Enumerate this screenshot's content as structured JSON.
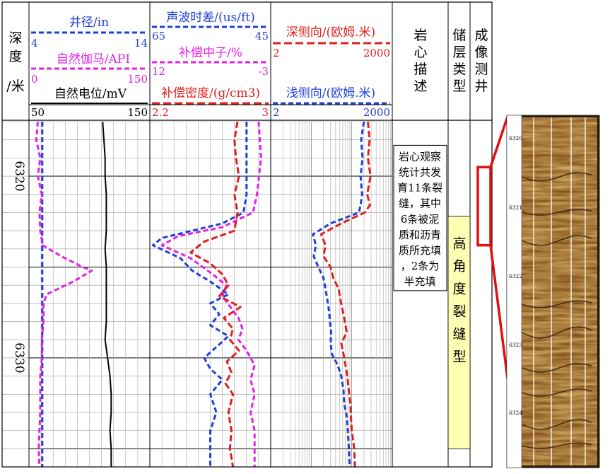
{
  "chart_data": {
    "type": "line",
    "title": "",
    "columns": {
      "depth": {
        "label_chars": [
          "深",
          "度",
          "/米"
        ]
      },
      "track1": {
        "caliper": {
          "label": "井径/in",
          "min": "4",
          "max": "14",
          "color": "#1f3fd6"
        },
        "gamma": {
          "label": "自然伽马/API",
          "min": "0",
          "max": "150",
          "color": "#e61ee6"
        },
        "sp": {
          "label": "自然电位/mV",
          "min": "50",
          "max": "150",
          "color": "#000000"
        }
      },
      "track2": {
        "sonic": {
          "label": "声波时差/(us/ft)",
          "min": "65",
          "max": "45",
          "color": "#1f3fd6"
        },
        "neutron": {
          "label": "补偿中子/%",
          "min": "12",
          "max": "-3",
          "color": "#e61ee6"
        },
        "density": {
          "label": "补偿密度/(g/cm3)",
          "min": "2.2",
          "max": "3",
          "color": "#e02020"
        }
      },
      "track3": {
        "deep_lat": {
          "label": "深侧向/(欧姆.米)",
          "min": "2",
          "max": "2000",
          "color": "#e02020"
        },
        "shallow_lat": {
          "label": "浅侧向/(欧姆.米)",
          "min": "2",
          "max": "2000",
          "color": "#1f3fd6"
        }
      },
      "core": {
        "header_chars": [
          "岩",
          "心",
          "描",
          "述"
        ]
      },
      "reservoir": {
        "header_chars": [
          "储",
          "层",
          "类",
          "型"
        ]
      },
      "imaging": {
        "header_chars": [
          "成",
          "像",
          "测",
          "井"
        ]
      }
    },
    "depth_range": [
      6317,
      6336
    ],
    "depth_labels": [
      "6320",
      "6330"
    ],
    "core_description_lines": [
      "岩心观察",
      "统计共发",
      "育11条裂",
      "缝，其中",
      "6条被泥",
      "质和沥青",
      "质所充填",
      "，2条为",
      "半充填"
    ],
    "reservoir_type_chars": [
      "高",
      "角",
      "度",
      "裂",
      "缝",
      "型"
    ],
    "reservoir_interval": [
      6322.2,
      6335.0
    ],
    "core_interval": [
      6318.3,
      6326.3
    ],
    "image_highlight_interval": [
      6319.5,
      6323.8
    ],
    "image_depth_labels": [
      "6320",
      "6321",
      "6322",
      "6323",
      "6324"
    ],
    "series": [
      {
        "name": "井径/in",
        "x_scale": [
          4,
          14
        ],
        "depth": [
          6317.0,
          6336.0
        ],
        "values": [
          5.1,
          5.1
        ]
      },
      {
        "name": "自然伽马/API",
        "x_scale": [
          0,
          150
        ],
        "depth": [
          6317.0,
          6318.0,
          6319.0,
          6320.0,
          6321.0,
          6322.0,
          6323.0,
          6323.8,
          6324.4,
          6324.9,
          6325.2,
          6325.8,
          6326.5,
          6327.0,
          6328.0,
          6329.0,
          6330.0,
          6331.0,
          6332.0,
          6333.0,
          6334.0,
          6335.0,
          6336.0
        ],
        "values": [
          11,
          9,
          14,
          11,
          16,
          13,
          14,
          17,
          40,
          62,
          78,
          55,
          22,
          18,
          18,
          16,
          16,
          14,
          14,
          14,
          13,
          12,
          13
        ]
      },
      {
        "name": "自然电位/mV",
        "x_scale": [
          50,
          150
        ],
        "depth": [
          6317.0,
          6318.0,
          6319.0,
          6320.0,
          6321.0,
          6322.0,
          6323.0,
          6324.0,
          6325.0,
          6326.0,
          6327.0,
          6328.0,
          6329.0,
          6330.0,
          6331.0,
          6332.0,
          6333.0,
          6334.0,
          6335.0,
          6336.0
        ],
        "values": [
          111,
          112,
          113,
          113,
          114,
          114,
          114,
          113,
          114,
          114,
          114,
          114,
          113,
          115,
          117,
          118,
          118,
          117,
          118,
          118
        ]
      },
      {
        "name": "声波时差/(us/ft)",
        "x_scale": [
          65,
          45
        ],
        "depth": [
          6317.0,
          6319.0,
          6321.0,
          6322.0,
          6322.6,
          6323.0,
          6323.4,
          6323.8,
          6324.5,
          6325.2,
          6325.8,
          6326.5,
          6327.0,
          6327.6,
          6328.2,
          6328.8,
          6329.4,
          6330.0,
          6330.6,
          6331.2,
          6332.0,
          6333.0,
          6334.0,
          6335.0,
          6336.0
        ],
        "values": [
          49,
          49,
          49,
          49.5,
          53,
          58,
          63,
          64.5,
          60,
          58,
          55,
          52,
          55,
          53.5,
          55,
          52,
          54,
          56,
          55,
          53,
          55,
          54,
          55,
          55,
          55
        ]
      },
      {
        "name": "补偿中子/%",
        "x_scale": [
          12,
          -3
        ],
        "depth": [
          6317.0,
          6319.0,
          6321.0,
          6322.0,
          6322.8,
          6323.3,
          6323.8,
          6324.5,
          6325.3,
          6326.0,
          6326.6,
          6327.2,
          6327.8,
          6328.4,
          6329.0,
          6329.6,
          6330.4,
          6331.2,
          6332.0,
          6333.0,
          6334.0,
          6335.0,
          6336.0
        ],
        "values": [
          -1.5,
          -1.8,
          -1.3,
          -0.8,
          3,
          8.5,
          10.5,
          7,
          4.5,
          2.5,
          3,
          2,
          1,
          0.5,
          1,
          0,
          -1,
          -0.5,
          -1,
          -0.5,
          -1,
          -1,
          -1
        ]
      },
      {
        "name": "补偿密度/(g/cm3)",
        "x_scale": [
          2.2,
          3.0
        ],
        "depth": [
          6317.0,
          6318.0,
          6319.0,
          6320.0,
          6321.0,
          6322.0,
          6323.0,
          6323.6,
          6324.2,
          6324.8,
          6325.4,
          6326.0,
          6326.6,
          6327.2,
          6327.8,
          6328.4,
          6329.0,
          6329.6,
          6330.2,
          6330.8,
          6331.4,
          6332.0,
          6333.0,
          6334.0,
          6335.0,
          6336.0
        ],
        "values": [
          2.78,
          2.76,
          2.77,
          2.79,
          2.76,
          2.78,
          2.76,
          2.56,
          2.47,
          2.6,
          2.68,
          2.72,
          2.66,
          2.8,
          2.69,
          2.75,
          2.73,
          2.79,
          2.71,
          2.74,
          2.7,
          2.75,
          2.72,
          2.74,
          2.73,
          2.75
        ]
      },
      {
        "name": "深侧向/(欧姆.米)",
        "x_scale": [
          2,
          2000
        ],
        "log": true,
        "depth": [
          6317.0,
          6318.0,
          6319.0,
          6320.0,
          6321.0,
          6321.6,
          6322.0,
          6322.6,
          6323.2,
          6323.8,
          6324.4,
          6325.0,
          6325.6,
          6326.2,
          6326.8,
          6327.4,
          6328.0,
          6328.6,
          6329.2,
          6329.8,
          6330.4,
          6331.0,
          6331.8,
          6332.5,
          6333.2,
          6334.0,
          6335.0,
          6336.0
        ],
        "values": [
          500,
          550,
          500,
          580,
          480,
          560,
          420,
          110,
          35,
          45,
          40,
          60,
          70,
          95,
          105,
          120,
          135,
          150,
          110,
          125,
          140,
          155,
          170,
          185,
          190,
          200,
          230,
          240
        ]
      },
      {
        "name": "浅侧向/(欧姆.米)",
        "x_scale": [
          2,
          2000
        ],
        "log": true,
        "depth": [
          6317.0,
          6318.0,
          6319.0,
          6320.0,
          6321.0,
          6321.6,
          6322.0,
          6322.6,
          6323.2,
          6323.8,
          6324.4,
          6325.0,
          6325.6,
          6326.2,
          6326.8,
          6327.4,
          6328.0,
          6328.6,
          6329.2,
          6329.8,
          6330.4,
          6331.0,
          6331.8,
          6332.5,
          6333.2,
          6334.0,
          6335.0,
          6336.0
        ],
        "values": [
          400,
          340,
          370,
          330,
          360,
          330,
          300,
          60,
          22,
          26,
          23,
          30,
          40,
          45,
          50,
          55,
          58,
          62,
          60,
          65,
          90,
          110,
          125,
          130,
          150,
          160,
          170,
          180
        ]
      }
    ]
  }
}
